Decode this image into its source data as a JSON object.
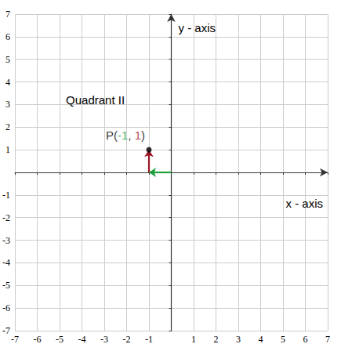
{
  "chart_data": {
    "type": "scatter",
    "x_label": "x - axis",
    "y_label": "y - axis",
    "annotations": [
      "Quadrant II"
    ],
    "x": [
      -1
    ],
    "values": [
      1
    ],
    "value_labels": [
      "P(-1, 1)"
    ],
    "color": "#000000",
    "marker": "circle",
    "data_labels": true,
    "xlim": [
      -7,
      7
    ],
    "ylim": [
      -7,
      7
    ],
    "xticks": [
      -7,
      -6,
      -5,
      -4,
      -3,
      -2,
      -1,
      1,
      2,
      3,
      4,
      5,
      6,
      7
    ],
    "yticks": [
      -7,
      -6,
      -5,
      -4,
      -3,
      -2,
      -1,
      1,
      2,
      3,
      4,
      5,
      6,
      7
    ],
    "grid": true
  }
}
